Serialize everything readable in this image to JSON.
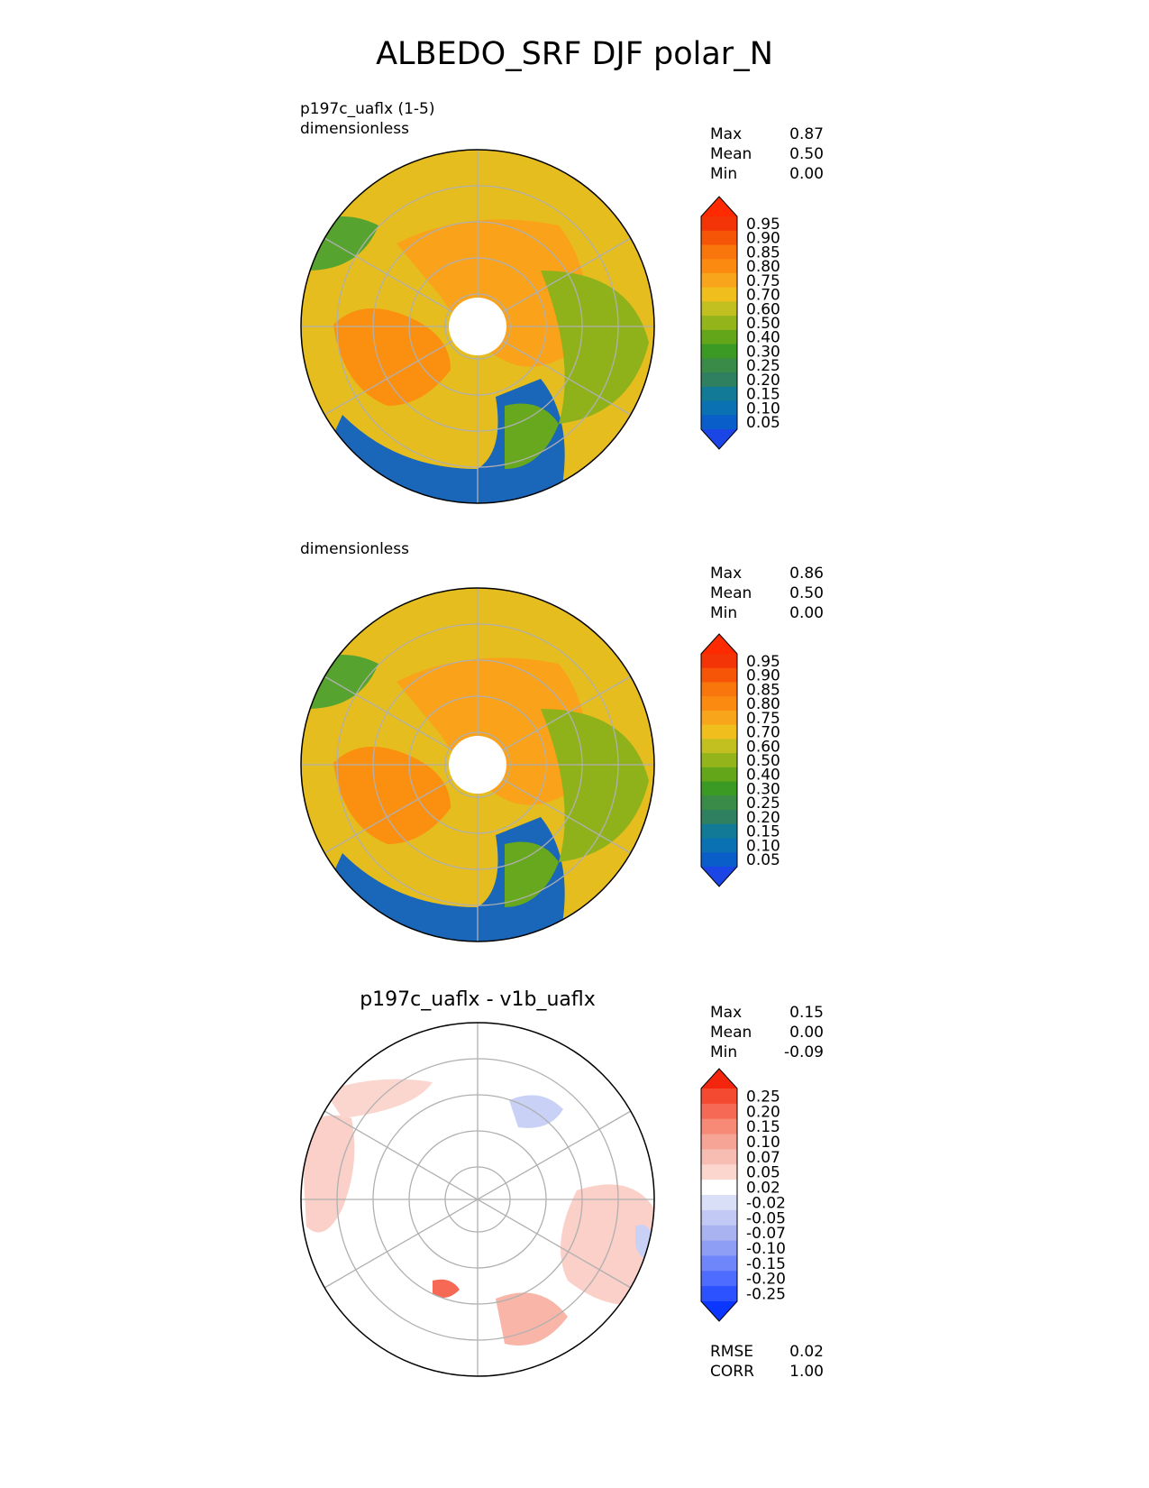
{
  "title": "ALBEDO_SRF DJF polar_N",
  "panels": {
    "test": {
      "label_line1": "p197c_uaflx (1-5)",
      "label_line2": "dimensionless",
      "stats": [
        {
          "label": "Max",
          "value": "0.87"
        },
        {
          "label": "Mean",
          "value": "0.50"
        },
        {
          "label": "Min",
          "value": "0.00"
        }
      ]
    },
    "reference": {
      "label_line1": "dimensionless",
      "stats": [
        {
          "label": "Max",
          "value": "0.86"
        },
        {
          "label": "Mean",
          "value": "0.50"
        },
        {
          "label": "Min",
          "value": "0.00"
        }
      ]
    },
    "diff": {
      "title": "p197c_uaflx - v1b_uaflx",
      "stats": [
        {
          "label": "Max",
          "value": "0.15"
        },
        {
          "label": "Mean",
          "value": "0.00"
        },
        {
          "label": "Min",
          "value": "-0.09"
        }
      ],
      "metrics": [
        {
          "label": "RMSE",
          "value": "0.02"
        },
        {
          "label": "CORR",
          "value": "1.00"
        }
      ]
    }
  },
  "colorbars": {
    "albedo": {
      "ticks": [
        "0.05",
        "0.10",
        "0.15",
        "0.20",
        "0.25",
        "0.30",
        "0.40",
        "0.50",
        "0.60",
        "0.70",
        "0.75",
        "0.80",
        "0.85",
        "0.90",
        "0.95"
      ],
      "colors": [
        "#1c45e6",
        "#0a5ec9",
        "#0a71b3",
        "#127a96",
        "#2f8060",
        "#3a8a48",
        "#3a9a23",
        "#63a61a",
        "#93b41b",
        "#c2bf20",
        "#f0bf1e",
        "#f9a51c",
        "#fb8a10",
        "#f9760d",
        "#f65508",
        "#f33406",
        "#ff2a00"
      ]
    },
    "diff": {
      "ticks": [
        "-0.25",
        "-0.20",
        "-0.15",
        "-0.10",
        "-0.07",
        "-0.05",
        "-0.02",
        "0.02",
        "0.05",
        "0.07",
        "0.10",
        "0.15",
        "0.20",
        "0.25"
      ],
      "colors": [
        "#0b36ff",
        "#2c51ff",
        "#4e6cff",
        "#6f86fb",
        "#8e9ef4",
        "#a9b3f2",
        "#c2c9f5",
        "#dadff8",
        "#ffffff",
        "#fbd6cf",
        "#f8bdb2",
        "#f6a495",
        "#f78a77",
        "#f66a55",
        "#f44a32",
        "#f3250c"
      ]
    }
  },
  "colors": {
    "ocean_low": "#1460c8",
    "land_snow": "#fb8f10",
    "diff_pos": "#f9c8bf",
    "diff_neg": "#c9d1f6",
    "grid": "#b0b0b0"
  }
}
